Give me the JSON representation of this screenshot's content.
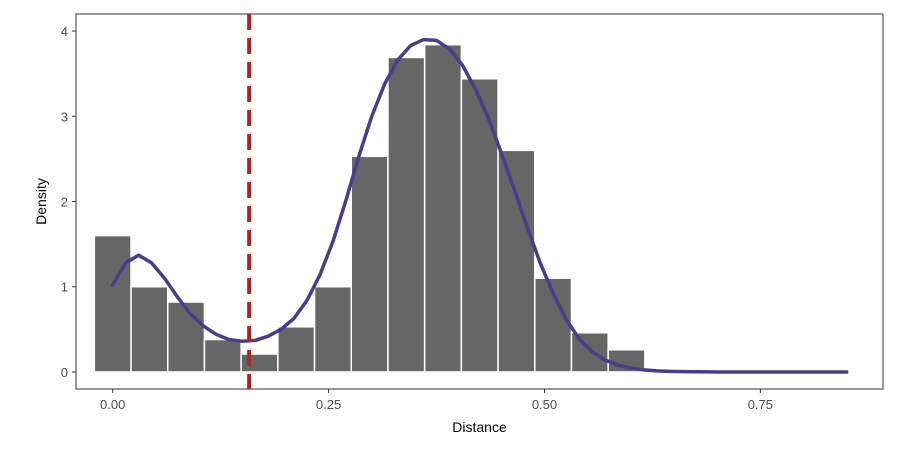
{
  "chart_data": {
    "type": "bar",
    "title": "",
    "xlabel": "Distance",
    "ylabel": "Density",
    "xlim": [
      -0.0425,
      0.892
    ],
    "ylim": [
      -0.2,
      4.2
    ],
    "grid": false,
    "x_ticks": [
      0.0,
      0.25,
      0.5,
      0.75
    ],
    "x_tick_labels": [
      "0.00",
      "0.25",
      "0.50",
      "0.75"
    ],
    "y_ticks": [
      0,
      1,
      2,
      3,
      4
    ],
    "y_tick_labels": [
      "0",
      "1",
      "2",
      "3",
      "4"
    ],
    "bin_width": 0.0425,
    "histogram": {
      "name": "histogram",
      "color": "#666666",
      "bin_centers": [
        0.0,
        0.0425,
        0.085,
        0.1275,
        0.17,
        0.2125,
        0.255,
        0.2975,
        0.34,
        0.3825,
        0.425,
        0.4675,
        0.51,
        0.5525,
        0.595,
        0.6375
      ],
      "values": [
        1.6,
        1.0,
        0.82,
        0.38,
        0.21,
        0.53,
        1.0,
        2.53,
        3.69,
        3.84,
        3.44,
        2.6,
        1.1,
        0.46,
        0.26,
        0.02
      ]
    },
    "density_curve": {
      "name": "density",
      "color": "#483D8B",
      "x": [
        0.0,
        0.015,
        0.03,
        0.045,
        0.06,
        0.075,
        0.09,
        0.105,
        0.12,
        0.135,
        0.15,
        0.165,
        0.18,
        0.195,
        0.21,
        0.225,
        0.24,
        0.255,
        0.27,
        0.285,
        0.3,
        0.315,
        0.33,
        0.345,
        0.36,
        0.375,
        0.39,
        0.405,
        0.42,
        0.435,
        0.45,
        0.465,
        0.48,
        0.495,
        0.51,
        0.525,
        0.54,
        0.555,
        0.57,
        0.585,
        0.6,
        0.615,
        0.63,
        0.645,
        0.66,
        0.675,
        0.69,
        0.705,
        0.72,
        0.75,
        0.8,
        0.85
      ],
      "y": [
        1.02,
        1.28,
        1.37,
        1.28,
        1.1,
        0.88,
        0.68,
        0.54,
        0.44,
        0.38,
        0.36,
        0.37,
        0.42,
        0.5,
        0.63,
        0.84,
        1.14,
        1.53,
        2.01,
        2.53,
        3.0,
        3.38,
        3.66,
        3.83,
        3.9,
        3.89,
        3.79,
        3.6,
        3.32,
        2.98,
        2.57,
        2.14,
        1.7,
        1.28,
        0.92,
        0.62,
        0.39,
        0.24,
        0.14,
        0.08,
        0.045,
        0.025,
        0.013,
        0.007,
        0.004,
        0.002,
        0.001,
        0.0,
        0.0,
        0.0,
        0.0,
        0.0
      ]
    },
    "threshold_line": {
      "name": "threshold",
      "x": 0.158,
      "color": "#B22222",
      "style": "dashed"
    }
  }
}
